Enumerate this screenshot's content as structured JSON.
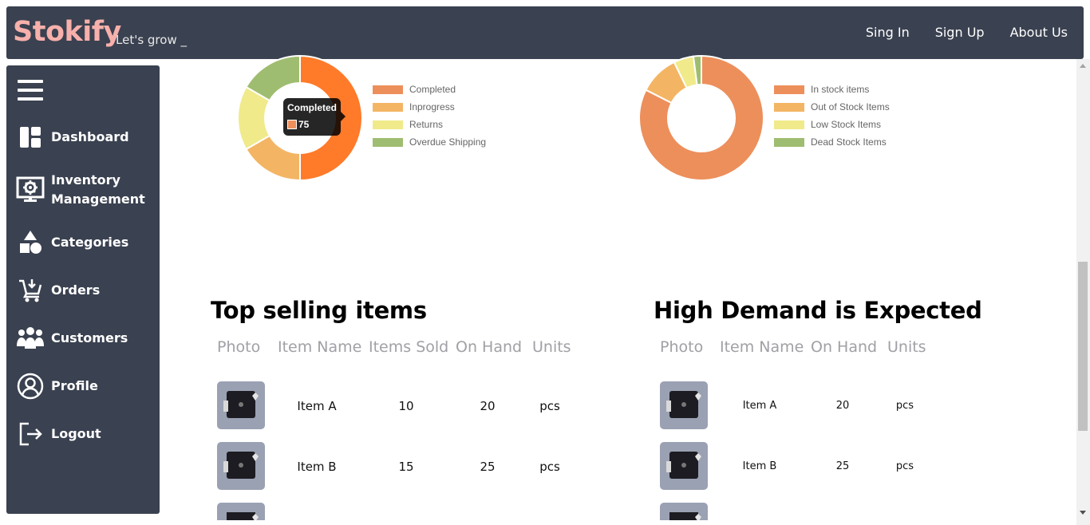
{
  "header": {
    "brand": "Stokify",
    "brand_color": "#f7b0ab",
    "tagline": "Let's grow _",
    "nav": [
      {
        "label": "Sing In"
      },
      {
        "label": "Sign Up"
      },
      {
        "label": "About Us"
      }
    ]
  },
  "sidebar": {
    "menu_icon": "hamburger-icon",
    "items": [
      {
        "label": "Dashboard",
        "icon": "dashboard-icon"
      },
      {
        "label": "Inventory Management",
        "line1": "Inventory",
        "line2": "Management",
        "icon": "inventory-gear-icon"
      },
      {
        "label": "Categories",
        "icon": "shapes-icon"
      },
      {
        "label": "Orders",
        "icon": "cart-icon"
      },
      {
        "label": "Customers",
        "icon": "people-icon"
      },
      {
        "label": "Profile",
        "icon": "user-circle-icon"
      },
      {
        "label": "Logout",
        "icon": "logout-icon"
      }
    ]
  },
  "chart_data": [
    {
      "type": "pie",
      "variant": "doughnut",
      "labels": [
        "Completed",
        "Inprogress",
        "Returns",
        "Overdue Shipping"
      ],
      "values": [
        75,
        25,
        25,
        25
      ],
      "colors": [
        "#ed8f5b",
        "#f3b564",
        "#f0ea8b",
        "#9fbd70"
      ],
      "legend": "right",
      "tooltip": {
        "title": "Completed",
        "value": "75"
      },
      "highlighted_index": 0,
      "highlight_color": "#ff7a29"
    },
    {
      "type": "pie",
      "variant": "doughnut",
      "labels": [
        "In stock items",
        "Out of Stock Items",
        "Low Stock Items",
        "Dead Stock Items"
      ],
      "values": [
        80,
        10,
        5,
        2
      ],
      "colors": [
        "#ed8f5b",
        "#f3b564",
        "#f0ea8b",
        "#9fbd70"
      ],
      "legend": "right"
    }
  ],
  "top_selling": {
    "title": "Top selling items",
    "columns": [
      "Photo",
      "Item Name",
      "Items Sold",
      "On Hand",
      "Units"
    ],
    "rows": [
      {
        "name": "Item A",
        "sold": "10",
        "on_hand": "20",
        "units": "pcs"
      },
      {
        "name": "Item B",
        "sold": "15",
        "on_hand": "25",
        "units": "pcs"
      }
    ]
  },
  "high_demand": {
    "title": "High Demand is Expected",
    "columns": [
      "Photo",
      "Item Name",
      "On Hand",
      "Units"
    ],
    "rows": [
      {
        "name": "Item A",
        "on_hand": "20",
        "units": "pcs"
      },
      {
        "name": "Item B",
        "on_hand": "25",
        "units": "pcs"
      }
    ]
  }
}
